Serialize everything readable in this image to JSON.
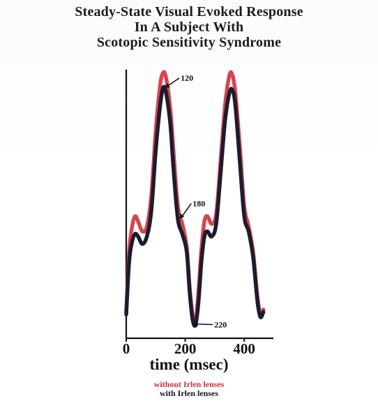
{
  "title_lines": [
    "Steady-State Visual Evoked Response",
    "In A Subject With",
    "Scotopic Sensitivity Syndrome"
  ],
  "chart_data": {
    "type": "line",
    "title": "Steady-State Visual Evoked Response In A Subject With Scotopic Sensitivity Syndrome",
    "xlabel": "time (msec)",
    "ylabel": "",
    "xlim": [
      0,
      480
    ],
    "ylim": [
      0,
      100
    ],
    "x_ticks": [
      0,
      200,
      400
    ],
    "y_axis_unlabeled": true,
    "grid": false,
    "legend_position": "bottom-center",
    "series": [
      {
        "name": "without Irlen lenses",
        "color": "#d64550",
        "points": [
          [
            0,
            6
          ],
          [
            10,
            30
          ],
          [
            20,
            40
          ],
          [
            30,
            44
          ],
          [
            40,
            42
          ],
          [
            55,
            38
          ],
          [
            70,
            40
          ],
          [
            85,
            52
          ],
          [
            100,
            78
          ],
          [
            115,
            96
          ],
          [
            125,
            101
          ],
          [
            135,
            99
          ],
          [
            150,
            86
          ],
          [
            160,
            70
          ],
          [
            175,
            48
          ],
          [
            190,
            41
          ],
          [
            205,
            32
          ],
          [
            215,
            16
          ],
          [
            225,
            5
          ],
          [
            235,
            2
          ],
          [
            245,
            14
          ],
          [
            255,
            31
          ],
          [
            265,
            42
          ],
          [
            275,
            44
          ],
          [
            290,
            41
          ],
          [
            305,
            45
          ],
          [
            320,
            66
          ],
          [
            335,
            88
          ],
          [
            350,
            100
          ],
          [
            360,
            100
          ],
          [
            370,
            93
          ],
          [
            385,
            72
          ],
          [
            400,
            48
          ],
          [
            415,
            40
          ],
          [
            430,
            30
          ],
          [
            445,
            12
          ],
          [
            455,
            5
          ],
          [
            465,
            7
          ]
        ]
      },
      {
        "name": "with Irlen lenses",
        "color": "#1c1c2e",
        "points": [
          [
            0,
            5
          ],
          [
            10,
            26
          ],
          [
            20,
            34
          ],
          [
            30,
            37
          ],
          [
            40,
            36
          ],
          [
            55,
            33
          ],
          [
            70,
            36
          ],
          [
            85,
            46
          ],
          [
            100,
            70
          ],
          [
            115,
            88
          ],
          [
            125,
            95
          ],
          [
            135,
            93
          ],
          [
            150,
            80
          ],
          [
            160,
            63
          ],
          [
            175,
            43
          ],
          [
            190,
            37
          ],
          [
            205,
            30
          ],
          [
            215,
            14
          ],
          [
            225,
            3
          ],
          [
            235,
            1
          ],
          [
            245,
            10
          ],
          [
            255,
            26
          ],
          [
            265,
            36
          ],
          [
            275,
            38
          ],
          [
            290,
            36
          ],
          [
            305,
            41
          ],
          [
            320,
            61
          ],
          [
            335,
            82
          ],
          [
            350,
            93
          ],
          [
            360,
            94
          ],
          [
            370,
            88
          ],
          [
            385,
            66
          ],
          [
            400,
            44
          ],
          [
            415,
            38
          ],
          [
            430,
            28
          ],
          [
            445,
            10
          ],
          [
            455,
            4
          ],
          [
            465,
            6
          ]
        ]
      }
    ],
    "annotations": [
      {
        "label": "120",
        "x": 128,
        "y": 95
      },
      {
        "label": "180",
        "x": 178,
        "y": 43
      },
      {
        "label": "220",
        "x": 223,
        "y": 1
      }
    ]
  },
  "legend": {
    "without": "without Irlen lenses",
    "with": "with Irlen lenses"
  }
}
